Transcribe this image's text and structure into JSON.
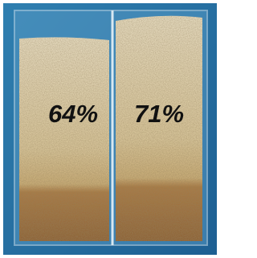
{
  "labels": [
    "64%",
    "71%"
  ]
}
